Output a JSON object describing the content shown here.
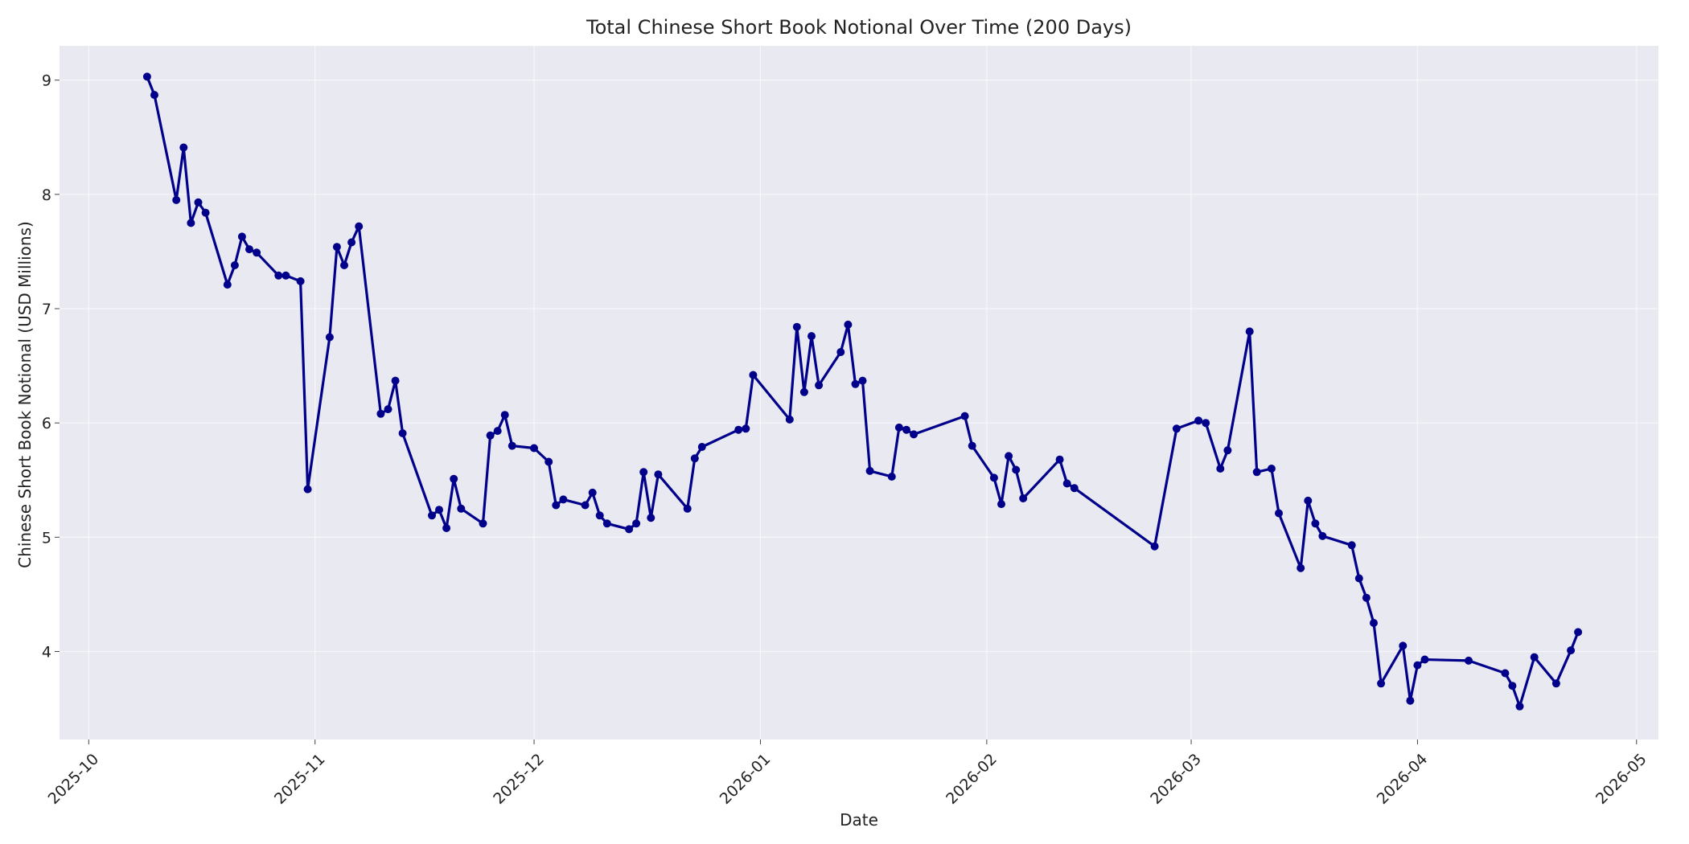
{
  "chart_data": {
    "type": "line",
    "title": "Total Chinese Short Book Notional Over Time (200 Days)",
    "xlabel": "Date",
    "ylabel": "Chinese Short Book Notional (USD Millions)",
    "xlim": [
      "2025-09-27",
      "2026-05-04"
    ],
    "ylim": [
      3.23,
      9.3
    ],
    "x_ticks": [
      "2025-10",
      "2025-11",
      "2025-12",
      "2026-01",
      "2026-02",
      "2026-03",
      "2026-04",
      "2026-05"
    ],
    "x_tick_dates": [
      "2025-10-01",
      "2025-11-01",
      "2025-12-01",
      "2026-01-01",
      "2026-02-01",
      "2026-03-01",
      "2026-04-01",
      "2026-05-01"
    ],
    "y_ticks": [
      4,
      5,
      6,
      7,
      8,
      9
    ],
    "grid": true,
    "marker": "circle",
    "colors": {
      "line": "#00008b",
      "plot_background": "#e9e9f1",
      "grid": "#f7f7fa"
    },
    "series": [
      {
        "x": [
          "2025-10-09",
          "2025-10-10",
          "2025-10-13",
          "2025-10-14",
          "2025-10-15",
          "2025-10-16",
          "2025-10-17",
          "2025-10-20",
          "2025-10-21",
          "2025-10-22",
          "2025-10-23",
          "2025-10-24",
          "2025-10-27",
          "2025-10-28",
          "2025-10-30",
          "2025-10-31",
          "2025-11-03",
          "2025-11-04",
          "2025-11-05",
          "2025-11-06",
          "2025-11-07",
          "2025-11-10",
          "2025-11-11",
          "2025-11-12",
          "2025-11-13",
          "2025-11-17",
          "2025-11-18",
          "2025-11-19",
          "2025-11-20",
          "2025-11-21",
          "2025-11-24",
          "2025-11-25",
          "2025-11-26",
          "2025-11-27",
          "2025-11-28",
          "2025-12-01",
          "2025-12-03",
          "2025-12-04",
          "2025-12-05",
          "2025-12-08",
          "2025-12-09",
          "2025-12-10",
          "2025-12-11",
          "2025-12-14",
          "2025-12-15",
          "2025-12-16",
          "2025-12-17",
          "2025-12-18",
          "2025-12-22",
          "2025-12-23",
          "2025-12-24",
          "2025-12-29",
          "2025-12-30",
          "2025-12-31",
          "2026-01-05",
          "2026-01-06",
          "2026-01-07",
          "2026-01-08",
          "2026-01-09",
          "2026-01-12",
          "2026-01-13",
          "2026-01-14",
          "2026-01-15",
          "2026-01-16",
          "2026-01-19",
          "2026-01-20",
          "2026-01-21",
          "2026-01-22",
          "2026-01-29",
          "2026-01-30",
          "2026-02-02",
          "2026-02-03",
          "2026-02-04",
          "2026-02-05",
          "2026-02-06",
          "2026-02-11",
          "2026-02-12",
          "2026-02-13",
          "2026-02-24",
          "2026-02-27",
          "2026-03-02",
          "2026-03-03",
          "2026-03-05",
          "2026-03-06",
          "2026-03-09",
          "2026-03-10",
          "2026-03-12",
          "2026-03-13",
          "2026-03-16",
          "2026-03-17",
          "2026-03-18",
          "2026-03-19",
          "2026-03-23",
          "2026-03-24",
          "2026-03-25",
          "2026-03-26",
          "2026-03-27",
          "2026-03-30",
          "2026-03-31",
          "2026-04-01",
          "2026-04-02",
          "2026-04-08",
          "2026-04-13",
          "2026-04-14",
          "2026-04-15",
          "2026-04-17",
          "2026-04-20",
          "2026-04-22",
          "2026-04-23"
        ],
        "y": [
          9.03,
          8.87,
          7.95,
          8.41,
          7.75,
          7.93,
          7.84,
          7.21,
          7.38,
          7.63,
          7.52,
          7.49,
          7.29,
          7.29,
          7.24,
          5.42,
          6.75,
          7.54,
          7.38,
          7.58,
          7.72,
          6.08,
          6.12,
          6.37,
          5.91,
          5.19,
          5.24,
          5.08,
          5.51,
          5.25,
          5.12,
          5.89,
          5.93,
          6.07,
          5.8,
          5.78,
          5.66,
          5.28,
          5.33,
          5.28,
          5.39,
          5.19,
          5.12,
          5.07,
          5.12,
          5.57,
          5.17,
          5.55,
          5.25,
          5.69,
          5.79,
          5.94,
          5.95,
          6.42,
          6.03,
          6.84,
          6.27,
          6.76,
          6.33,
          6.62,
          6.86,
          6.34,
          6.37,
          5.58,
          5.53,
          5.96,
          5.94,
          5.9,
          6.06,
          5.8,
          5.52,
          5.29,
          5.71,
          5.59,
          5.34,
          5.68,
          5.47,
          5.43,
          4.92,
          5.95,
          6.02,
          6.0,
          5.6,
          5.76,
          6.8,
          5.57,
          5.6,
          5.21,
          4.73,
          5.32,
          5.12,
          5.01,
          4.93,
          4.64,
          4.47,
          4.25,
          3.72,
          4.05,
          3.57,
          3.88,
          3.93,
          3.92,
          3.81,
          3.7,
          3.52,
          3.95,
          3.72,
          4.01,
          4.17
        ]
      }
    ]
  }
}
